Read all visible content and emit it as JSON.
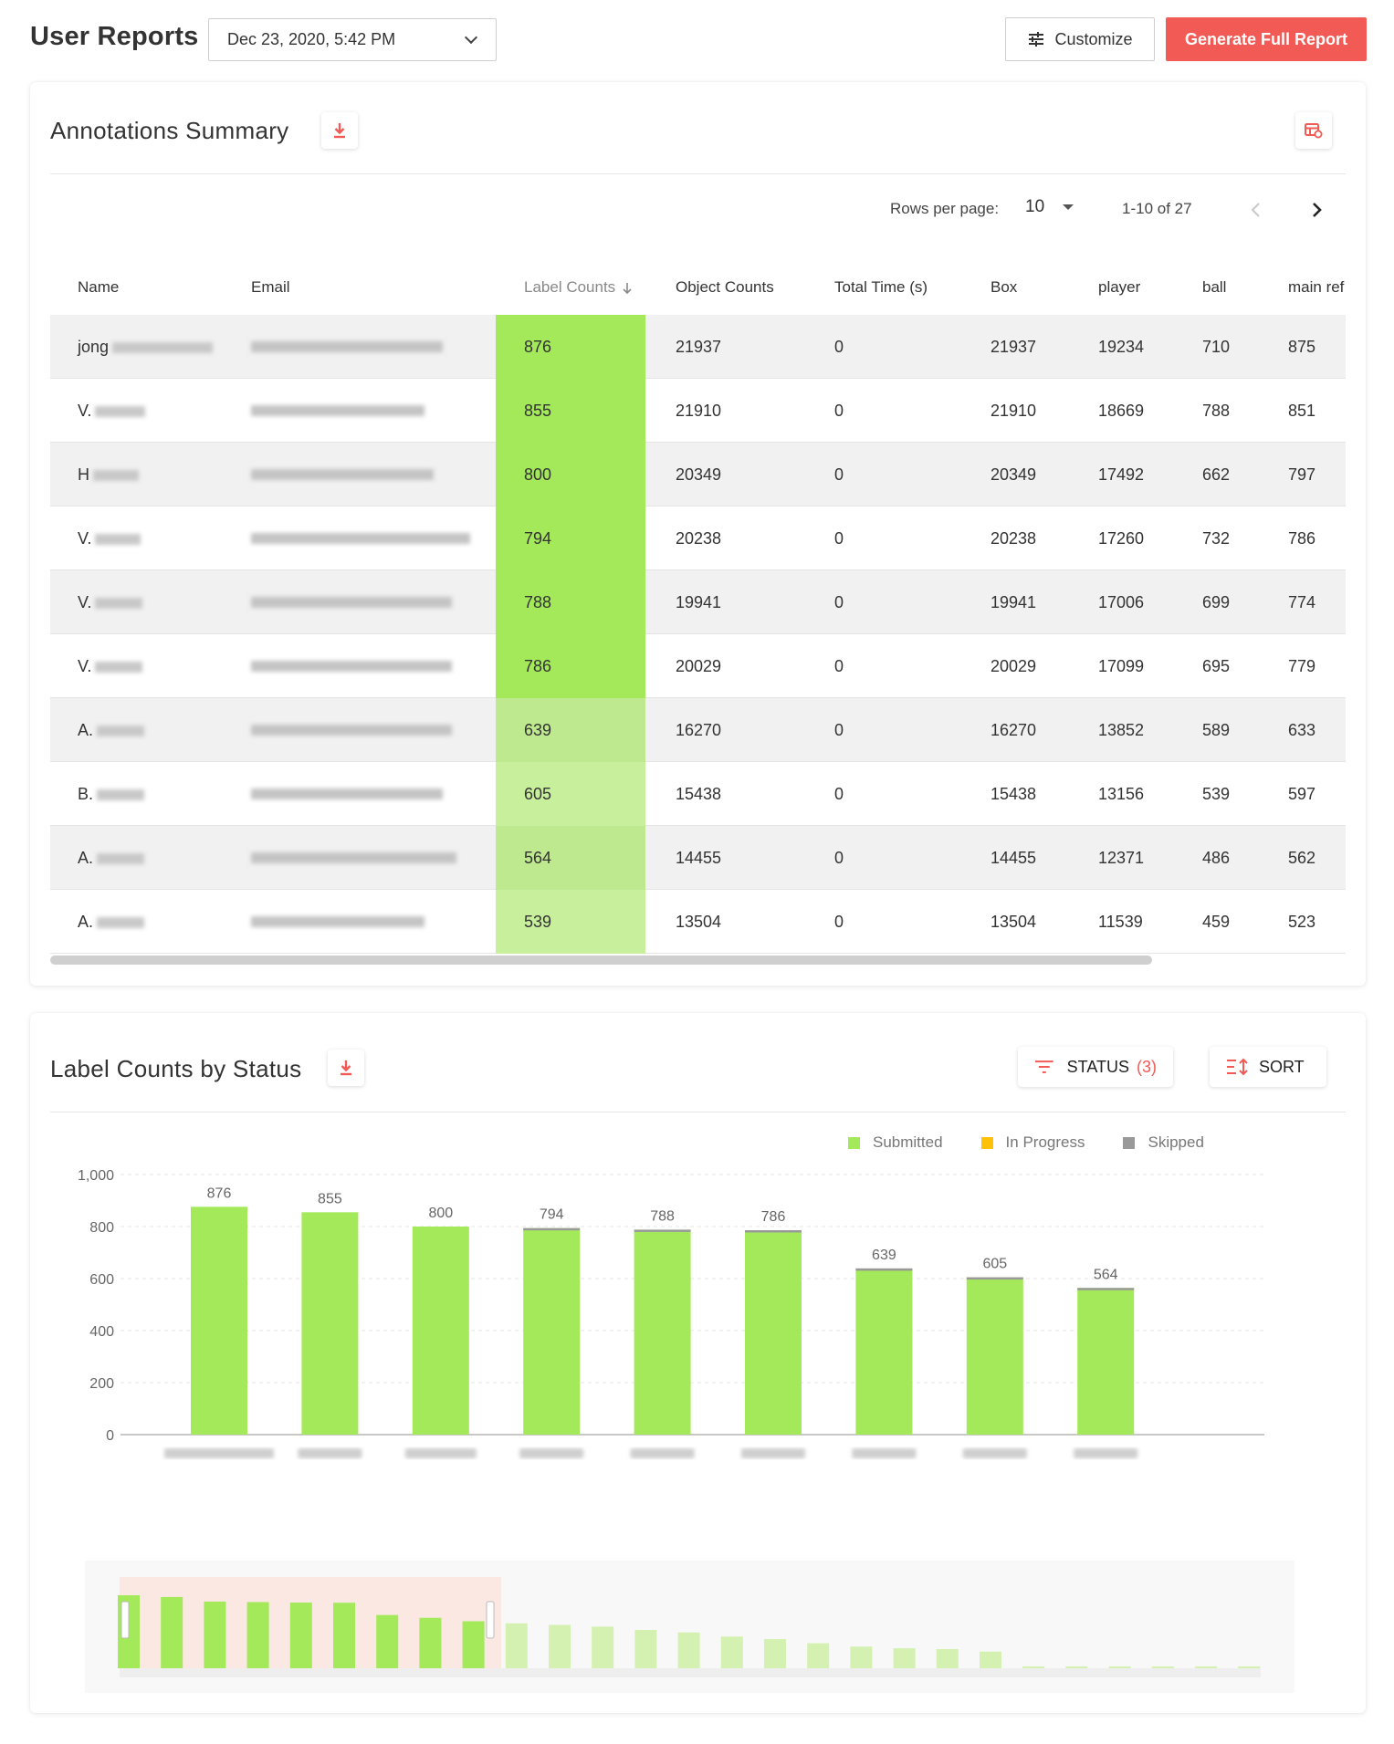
{
  "header": {
    "title": "User Reports",
    "date_value": "Dec 23, 2020, 5:42 PM",
    "customize_label": "Customize",
    "generate_label": "Generate Full Report"
  },
  "summary": {
    "title": "Annotations Summary",
    "rows_per_page_label": "Rows per page:",
    "rows_per_page_value": "10",
    "range_text": "1-10 of 27",
    "columns": [
      "Name",
      "Email",
      "Label Counts",
      "Object Counts",
      "Total Time (s)",
      "Box",
      "player",
      "ball",
      "main ref"
    ],
    "sorted_column": "Label Counts",
    "rows": [
      {
        "name": "jong",
        "label": "876",
        "object": "21937",
        "time": "0",
        "box": "21937",
        "player": "19234",
        "ball": "710",
        "mainref": "875"
      },
      {
        "name": "V.",
        "label": "855",
        "object": "21910",
        "time": "0",
        "box": "21910",
        "player": "18669",
        "ball": "788",
        "mainref": "851"
      },
      {
        "name": "H",
        "label": "800",
        "object": "20349",
        "time": "0",
        "box": "20349",
        "player": "17492",
        "ball": "662",
        "mainref": "797"
      },
      {
        "name": "V.",
        "label": "794",
        "object": "20238",
        "time": "0",
        "box": "20238",
        "player": "17260",
        "ball": "732",
        "mainref": "786"
      },
      {
        "name": "V.",
        "label": "788",
        "object": "19941",
        "time": "0",
        "box": "19941",
        "player": "17006",
        "ball": "699",
        "mainref": "774"
      },
      {
        "name": "V.",
        "label": "786",
        "object": "20029",
        "time": "0",
        "box": "20029",
        "player": "17099",
        "ball": "695",
        "mainref": "779"
      },
      {
        "name": "A.",
        "label": "639",
        "object": "16270",
        "time": "0",
        "box": "16270",
        "player": "13852",
        "ball": "589",
        "mainref": "633"
      },
      {
        "name": "B.",
        "label": "605",
        "object": "15438",
        "time": "0",
        "box": "15438",
        "player": "13156",
        "ball": "539",
        "mainref": "597"
      },
      {
        "name": "A.",
        "label": "564",
        "object": "14455",
        "time": "0",
        "box": "14455",
        "player": "12371",
        "ball": "486",
        "mainref": "562"
      },
      {
        "name": "A.",
        "label": "539",
        "object": "13504",
        "time": "0",
        "box": "13504",
        "player": "11539",
        "ball": "459",
        "mainref": "523"
      }
    ]
  },
  "status_chart": {
    "title": "Label Counts by Status",
    "status_filter_label": "STATUS",
    "status_filter_count": "(3)",
    "sort_label": "SORT"
  },
  "colors": {
    "accent": "#f25a55",
    "submitted": "#a3e95a",
    "in_progress": "#ffc107",
    "skipped": "#999999"
  },
  "chart_data": {
    "type": "bar",
    "legend": [
      "Submitted",
      "In Progress",
      "Skipped"
    ],
    "legend_position": "top-right",
    "yticks": [
      "1,000",
      "800",
      "600",
      "400",
      "200",
      "0"
    ],
    "ylim": [
      0,
      1000
    ],
    "grid": true,
    "series": [
      {
        "name": "Submitted",
        "values": [
          876,
          855,
          800,
          794,
          788,
          786,
          639,
          605,
          564
        ]
      }
    ],
    "data_labels": [
      876,
      855,
      800,
      794,
      788,
      786,
      639,
      605,
      564
    ],
    "overview_values": [
      876,
      855,
      800,
      794,
      788,
      786,
      639,
      605,
      564,
      539,
      520,
      500,
      460,
      430,
      380,
      350,
      300,
      260,
      240,
      230,
      200,
      10,
      8,
      6,
      5,
      4,
      3
    ]
  }
}
